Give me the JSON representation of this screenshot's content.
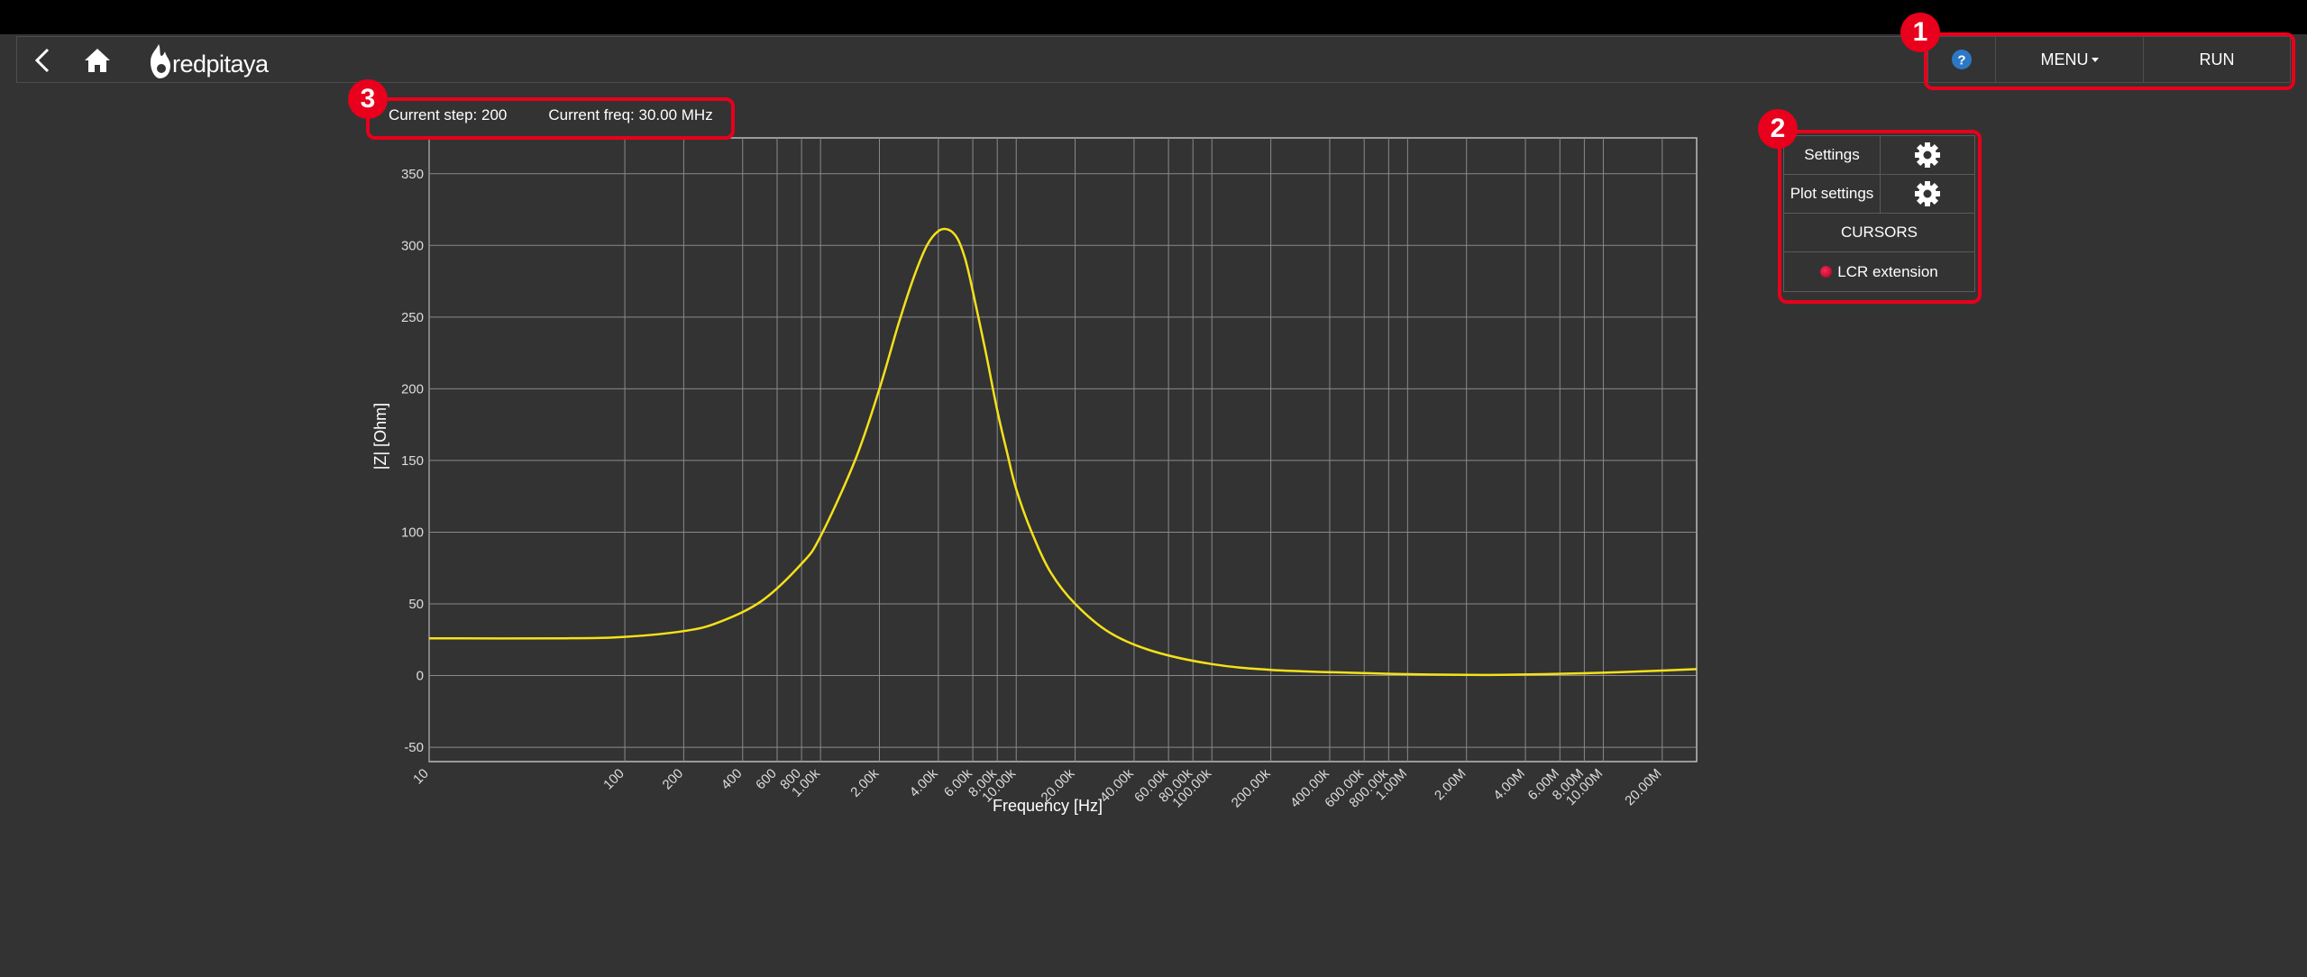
{
  "header": {
    "logo_text": "redpitaya",
    "help_label": "?",
    "menu_label": "MENU",
    "run_label": "RUN"
  },
  "side_panel": {
    "settings_label": "Settings",
    "plot_settings_label": "Plot settings",
    "cursors_label": "CURSORS",
    "lcr_label": "LCR extension"
  },
  "status": {
    "current_step": "Current step: 200",
    "current_freq": "Current freq: 30.00 MHz"
  },
  "annotations": [
    "1",
    "2",
    "3"
  ],
  "colors": {
    "trace": "#f5e11a",
    "annotation": "#e8001c",
    "background": "#333333",
    "led": "#d0103a"
  },
  "chart_data": {
    "type": "line",
    "xlabel": "Frequency [Hz]",
    "ylabel": "|Z| [Ohm]",
    "xscale": "log",
    "xlim": [
      10,
      30000000
    ],
    "ylim": [
      -60,
      375
    ],
    "y_ticks": [
      -50,
      0,
      50,
      100,
      150,
      200,
      250,
      300,
      350
    ],
    "x_ticks": [
      {
        "v": 10,
        "l": "10"
      },
      {
        "v": 100,
        "l": "100"
      },
      {
        "v": 200,
        "l": "200"
      },
      {
        "v": 400,
        "l": "400"
      },
      {
        "v": 600,
        "l": "600"
      },
      {
        "v": 800,
        "l": "800"
      },
      {
        "v": 1000,
        "l": "1.00k"
      },
      {
        "v": 2000,
        "l": "2.00k"
      },
      {
        "v": 4000,
        "l": "4.00k"
      },
      {
        "v": 6000,
        "l": "6.00k"
      },
      {
        "v": 8000,
        "l": "8.00k"
      },
      {
        "v": 10000,
        "l": "10.00k"
      },
      {
        "v": 20000,
        "l": "20.00k"
      },
      {
        "v": 40000,
        "l": "40.00k"
      },
      {
        "v": 60000,
        "l": "60.00k"
      },
      {
        "v": 80000,
        "l": "80.00k"
      },
      {
        "v": 100000,
        "l": "100.00k"
      },
      {
        "v": 200000,
        "l": "200.00k"
      },
      {
        "v": 400000,
        "l": "400.00k"
      },
      {
        "v": 600000,
        "l": "600.00k"
      },
      {
        "v": 800000,
        "l": "800.00k"
      },
      {
        "v": 1000000,
        "l": "1.00M"
      },
      {
        "v": 2000000,
        "l": "2.00M"
      },
      {
        "v": 4000000,
        "l": "4.00M"
      },
      {
        "v": 6000000,
        "l": "6.00M"
      },
      {
        "v": 8000000,
        "l": "8.00M"
      },
      {
        "v": 10000000,
        "l": "10.00M"
      },
      {
        "v": 20000000,
        "l": "20.00M"
      }
    ],
    "grid": true,
    "series": [
      {
        "x": [
          10,
          50,
          100,
          200,
          300,
          500,
          800,
          1000,
          1500,
          2000,
          2500,
          3000,
          3500,
          4000,
          4500,
          5000,
          5500,
          6000,
          7000,
          8000,
          9000,
          10000,
          12000,
          15000,
          20000,
          30000,
          50000,
          100000,
          200000,
          500000,
          1000000,
          2000000,
          3000000,
          5000000,
          10000000,
          20000000,
          30000000
        ],
        "y": [
          26,
          26,
          27,
          31,
          37,
          52,
          78,
          97,
          150,
          200,
          245,
          278,
          300,
          310,
          311,
          305,
          290,
          268,
          225,
          185,
          155,
          130,
          100,
          72,
          50,
          30,
          17,
          8,
          4,
          2,
          1,
          0.5,
          0.5,
          1,
          2,
          3.5,
          4.5
        ]
      }
    ]
  }
}
